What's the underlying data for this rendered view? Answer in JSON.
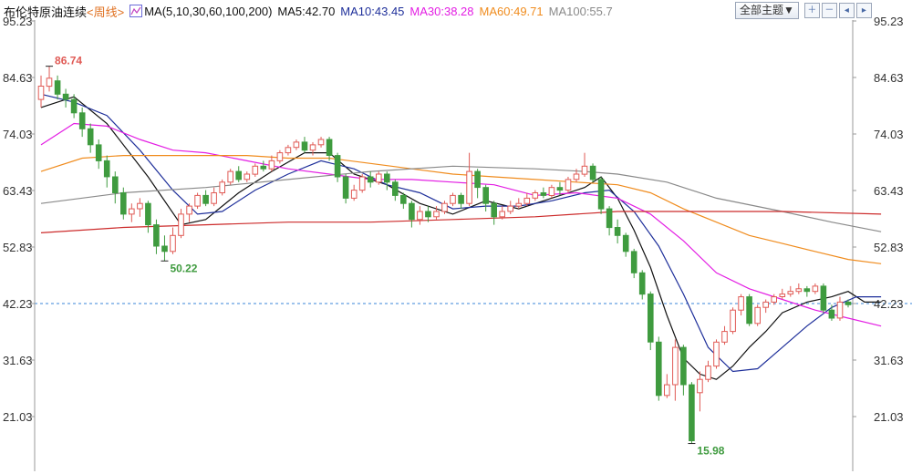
{
  "header": {
    "title": "布伦特原油连续",
    "period_label": "<周线>",
    "ma_icon": "ma-indicator-icon",
    "ma_params": "MA(5,10,30,60,100,200)",
    "ma5": "MA5:42.70",
    "ma10": "MA10:43.45",
    "ma30": "MA30:38.28",
    "ma60": "MA60:49.71",
    "ma100": "MA100:55.7"
  },
  "toolbar": {
    "theme_label": "全部主题▼",
    "buttons": [
      "zoom-in-icon",
      "zoom-out-icon",
      "move-left-icon",
      "move-right-icon"
    ]
  },
  "colors": {
    "up": "#e05a55",
    "down": "#3f9b3f",
    "ma5": "#111111",
    "ma10": "#1e2f9a",
    "ma30": "#e31ee3",
    "ma60": "#f08c1e",
    "ma100": "#8a8a8a",
    "ma200": "#cc2a2a",
    "current_line": "#3a86d8"
  },
  "chart_data": {
    "type": "candlestick",
    "y_ticks": [
      "95.23",
      "84.63",
      "74.03",
      "63.43",
      "52.83",
      "42.23",
      "31.63",
      "21.03"
    ],
    "ylim": [
      15.0,
      95.23
    ],
    "current_price": 42.23,
    "annotations": [
      {
        "label": "86.74",
        "value": 86.74,
        "kind": "high"
      },
      {
        "label": "50.22",
        "value": 50.22,
        "kind": "low"
      },
      {
        "label": "15.98",
        "value": 15.98,
        "kind": "low"
      }
    ],
    "candles": [
      [
        80.5,
        83.0,
        85.0,
        79.0
      ],
      [
        83.0,
        84.5,
        86.74,
        82.0
      ],
      [
        84.0,
        81.5,
        85.0,
        80.5
      ],
      [
        81.5,
        80.5,
        82.5,
        79.0
      ],
      [
        80.5,
        78.0,
        81.5,
        77.0
      ],
      [
        78.0,
        75.0,
        79.0,
        73.5
      ],
      [
        75.0,
        72.0,
        76.0,
        70.5
      ],
      [
        72.0,
        69.0,
        73.0,
        67.5
      ],
      [
        69.0,
        66.0,
        70.0,
        64.0
      ],
      [
        66.0,
        63.0,
        67.0,
        61.0
      ],
      [
        63.0,
        59.0,
        64.0,
        58.0
      ],
      [
        59.0,
        60.0,
        61.0,
        57.5
      ],
      [
        60.0,
        61.0,
        62.0,
        58.5
      ],
      [
        61.0,
        57.0,
        61.5,
        55.5
      ],
      [
        57.0,
        53.0,
        58.0,
        51.5
      ],
      [
        53.0,
        52.0,
        55.0,
        50.22
      ],
      [
        52.0,
        55.0,
        56.5,
        51.5
      ],
      [
        55.0,
        59.0,
        60.0,
        54.5
      ],
      [
        59.0,
        60.5,
        61.0,
        57.5
      ],
      [
        60.5,
        62.5,
        63.0,
        60.0
      ],
      [
        62.5,
        61.0,
        63.5,
        60.5
      ],
      [
        61.0,
        63.0,
        64.0,
        60.5
      ],
      [
        63.0,
        65.0,
        65.5,
        62.5
      ],
      [
        65.0,
        67.0,
        67.5,
        64.5
      ],
      [
        67.0,
        65.5,
        68.0,
        65.0
      ],
      [
        65.5,
        66.5,
        67.0,
        65.0
      ],
      [
        66.5,
        68.0,
        68.5,
        66.0
      ],
      [
        68.0,
        67.5,
        69.0,
        67.0
      ],
      [
        67.5,
        69.0,
        70.0,
        67.0
      ],
      [
        69.0,
        70.5,
        71.0,
        68.5
      ],
      [
        70.5,
        71.5,
        72.0,
        70.0
      ],
      [
        71.5,
        72.5,
        73.0,
        71.0
      ],
      [
        72.5,
        71.0,
        73.5,
        70.5
      ],
      [
        71.0,
        72.0,
        72.5,
        70.0
      ],
      [
        72.0,
        73.0,
        73.5,
        71.5
      ],
      [
        73.0,
        70.0,
        73.5,
        69.0
      ],
      [
        70.0,
        66.0,
        70.5,
        65.0
      ],
      [
        66.0,
        62.0,
        66.5,
        61.0
      ],
      [
        62.0,
        63.5,
        64.5,
        61.5
      ],
      [
        63.5,
        66.0,
        66.5,
        63.0
      ],
      [
        66.0,
        65.0,
        67.0,
        64.0
      ],
      [
        65.0,
        66.5,
        67.0,
        64.5
      ],
      [
        66.5,
        65.0,
        67.0,
        63.5
      ],
      [
        65.0,
        62.5,
        65.5,
        61.5
      ],
      [
        62.5,
        61.0,
        63.0,
        60.0
      ],
      [
        61.0,
        58.0,
        61.5,
        56.5
      ],
      [
        58.0,
        59.5,
        60.5,
        57.0
      ],
      [
        59.5,
        58.5,
        60.5,
        57.5
      ],
      [
        58.5,
        59.5,
        60.5,
        58.0
      ],
      [
        59.5,
        61.0,
        61.5,
        59.0
      ],
      [
        61.0,
        62.5,
        63.0,
        60.5
      ],
      [
        62.5,
        61.0,
        63.0,
        60.0
      ],
      [
        61.0,
        67.0,
        70.5,
        60.5
      ],
      [
        67.0,
        64.0,
        67.5,
        62.0
      ],
      [
        64.0,
        61.0,
        64.5,
        59.5
      ],
      [
        61.0,
        58.5,
        61.5,
        57.0
      ],
      [
        58.5,
        59.5,
        60.5,
        58.0
      ],
      [
        59.5,
        60.5,
        61.5,
        59.0
      ],
      [
        60.5,
        61.0,
        62.0,
        60.0
      ],
      [
        61.0,
        62.0,
        63.0,
        60.5
      ],
      [
        62.0,
        63.0,
        63.5,
        61.5
      ],
      [
        63.0,
        62.5,
        64.0,
        62.0
      ],
      [
        62.5,
        64.0,
        64.5,
        62.0
      ],
      [
        64.0,
        63.5,
        65.0,
        62.5
      ],
      [
        63.5,
        65.5,
        66.0,
        63.0
      ],
      [
        65.5,
        66.5,
        67.5,
        65.0
      ],
      [
        66.5,
        68.0,
        70.5,
        66.0
      ],
      [
        68.0,
        65.5,
        68.5,
        65.0
      ],
      [
        65.5,
        60.0,
        66.0,
        59.0
      ],
      [
        60.0,
        56.5,
        60.5,
        55.0
      ],
      [
        56.5,
        55.0,
        58.0,
        53.5
      ],
      [
        55.0,
        52.0,
        55.5,
        51.0
      ],
      [
        52.0,
        48.0,
        52.5,
        47.0
      ],
      [
        48.0,
        44.0,
        48.5,
        43.0
      ],
      [
        44.0,
        35.0,
        44.5,
        33.5
      ],
      [
        35.0,
        25.0,
        36.0,
        24.0
      ],
      [
        25.0,
        27.0,
        29.0,
        24.5
      ],
      [
        27.0,
        34.0,
        35.5,
        24.0
      ],
      [
        34.0,
        27.0,
        34.5,
        25.0
      ],
      [
        27.0,
        16.5,
        27.5,
        15.98
      ],
      [
        25.5,
        28.0,
        29.5,
        22.0
      ],
      [
        28.0,
        30.5,
        31.5,
        27.5
      ],
      [
        30.5,
        35.0,
        35.5,
        30.0
      ],
      [
        35.0,
        37.0,
        38.0,
        34.5
      ],
      [
        37.0,
        41.0,
        41.5,
        36.5
      ],
      [
        41.0,
        43.5,
        44.0,
        40.0
      ],
      [
        43.5,
        38.5,
        44.0,
        38.0
      ],
      [
        38.5,
        41.5,
        42.0,
        38.0
      ],
      [
        41.5,
        42.5,
        43.0,
        40.5
      ],
      [
        42.5,
        43.5,
        44.0,
        42.0
      ],
      [
        43.5,
        44.0,
        45.0,
        43.0
      ],
      [
        44.0,
        44.5,
        45.5,
        43.5
      ],
      [
        44.5,
        45.0,
        46.0,
        44.0
      ],
      [
        45.0,
        44.5,
        45.5,
        43.5
      ],
      [
        44.5,
        45.5,
        46.0,
        44.0
      ],
      [
        45.5,
        41.0,
        46.0,
        40.5
      ],
      [
        41.0,
        39.5,
        42.0,
        39.0
      ],
      [
        39.5,
        42.5,
        43.5,
        39.0
      ],
      [
        42.5,
        42.0,
        43.0,
        41.5
      ]
    ],
    "series": [
      {
        "name": "MA5",
        "key": "ma5",
        "points": [
          [
            0,
            79.0
          ],
          [
            4,
            81.0
          ],
          [
            8,
            76.0
          ],
          [
            13,
            66.0
          ],
          [
            17,
            57.0
          ],
          [
            20,
            58.0
          ],
          [
            24,
            63.0
          ],
          [
            28,
            67.0
          ],
          [
            32,
            70.5
          ],
          [
            35,
            70.5
          ],
          [
            38,
            66.5
          ],
          [
            42,
            64.5
          ],
          [
            46,
            61.0
          ],
          [
            50,
            59.0
          ],
          [
            54,
            61.5
          ],
          [
            58,
            60.0
          ],
          [
            62,
            62.0
          ],
          [
            66,
            64.0
          ],
          [
            68,
            66.0
          ],
          [
            70,
            62.0
          ],
          [
            72,
            56.0
          ],
          [
            74,
            49.0
          ],
          [
            76,
            40.0
          ],
          [
            78,
            32.0
          ],
          [
            80,
            29.0
          ],
          [
            82,
            28.0
          ],
          [
            84,
            30.5
          ],
          [
            86,
            34.0
          ],
          [
            88,
            37.0
          ],
          [
            90,
            40.5
          ],
          [
            93,
            42.5
          ],
          [
            96,
            43.5
          ],
          [
            98,
            44.5
          ],
          [
            100,
            42.5
          ],
          [
            102,
            42.5
          ]
        ]
      },
      {
        "name": "MA10",
        "key": "ma10",
        "points": [
          [
            0,
            81.5
          ],
          [
            4,
            80.0
          ],
          [
            8,
            77.5
          ],
          [
            12,
            71.0
          ],
          [
            16,
            63.5
          ],
          [
            19,
            59.0
          ],
          [
            22,
            59.5
          ],
          [
            26,
            63.5
          ],
          [
            30,
            66.5
          ],
          [
            34,
            69.0
          ],
          [
            38,
            67.5
          ],
          [
            42,
            64.5
          ],
          [
            46,
            63.0
          ],
          [
            50,
            60.0
          ],
          [
            54,
            60.5
          ],
          [
            58,
            60.5
          ],
          [
            62,
            61.5
          ],
          [
            66,
            63.0
          ],
          [
            69,
            63.5
          ],
          [
            72,
            59.5
          ],
          [
            75,
            53.0
          ],
          [
            78,
            44.0
          ],
          [
            81,
            34.0
          ],
          [
            84,
            29.5
          ],
          [
            87,
            30.0
          ],
          [
            90,
            34.0
          ],
          [
            93,
            38.0
          ],
          [
            96,
            41.5
          ],
          [
            99,
            43.5
          ],
          [
            102,
            43.5
          ]
        ]
      },
      {
        "name": "MA30",
        "key": "ma30",
        "points": [
          [
            0,
            72.0
          ],
          [
            4,
            76.0
          ],
          [
            8,
            75.5
          ],
          [
            12,
            73.0
          ],
          [
            16,
            71.0
          ],
          [
            20,
            70.5
          ],
          [
            25,
            69.0
          ],
          [
            30,
            67.5
          ],
          [
            35,
            66.5
          ],
          [
            40,
            65.5
          ],
          [
            45,
            65.5
          ],
          [
            50,
            65.0
          ],
          [
            55,
            64.5
          ],
          [
            60,
            62.5
          ],
          [
            65,
            63.0
          ],
          [
            70,
            62.0
          ],
          [
            74,
            59.0
          ],
          [
            78,
            54.0
          ],
          [
            82,
            48.0
          ],
          [
            86,
            45.0
          ],
          [
            90,
            43.0
          ],
          [
            94,
            41.0
          ],
          [
            98,
            39.5
          ],
          [
            102,
            38.0
          ]
        ]
      },
      {
        "name": "MA60",
        "key": "ma60",
        "points": [
          [
            0,
            67.0
          ],
          [
            5,
            69.5
          ],
          [
            10,
            70.0
          ],
          [
            15,
            70.0
          ],
          [
            20,
            70.0
          ],
          [
            25,
            70.0
          ],
          [
            30,
            69.5
          ],
          [
            35,
            69.5
          ],
          [
            40,
            68.5
          ],
          [
            45,
            67.5
          ],
          [
            50,
            66.5
          ],
          [
            55,
            66.0
          ],
          [
            60,
            65.5
          ],
          [
            65,
            65.0
          ],
          [
            70,
            64.5
          ],
          [
            74,
            63.0
          ],
          [
            78,
            60.0
          ],
          [
            82,
            57.5
          ],
          [
            86,
            55.0
          ],
          [
            90,
            53.5
          ],
          [
            94,
            52.0
          ],
          [
            98,
            50.5
          ],
          [
            102,
            49.7
          ]
        ]
      },
      {
        "name": "MA100",
        "key": "ma100",
        "points": [
          [
            0,
            61.0
          ],
          [
            10,
            63.0
          ],
          [
            20,
            64.0
          ],
          [
            30,
            65.5
          ],
          [
            40,
            67.0
          ],
          [
            50,
            68.0
          ],
          [
            60,
            67.5
          ],
          [
            66,
            67.0
          ],
          [
            70,
            66.5
          ],
          [
            76,
            65.0
          ],
          [
            82,
            62.0
          ],
          [
            90,
            59.5
          ],
          [
            96,
            57.5
          ],
          [
            102,
            55.7
          ]
        ]
      },
      {
        "name": "MA200",
        "key": "ma200",
        "points": [
          [
            0,
            55.5
          ],
          [
            10,
            56.5
          ],
          [
            20,
            57.0
          ],
          [
            30,
            57.5
          ],
          [
            40,
            57.5
          ],
          [
            50,
            58.0
          ],
          [
            60,
            58.5
          ],
          [
            70,
            59.5
          ],
          [
            80,
            59.5
          ],
          [
            90,
            59.5
          ],
          [
            102,
            59.0
          ]
        ]
      }
    ]
  }
}
